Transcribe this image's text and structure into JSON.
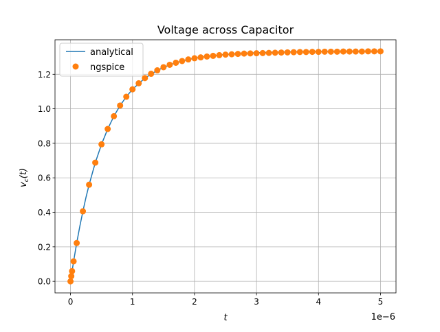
{
  "chart_data": {
    "type": "line",
    "title": "Voltage across Capacitor",
    "xlabel": "t",
    "ylabel": "v_c(t)",
    "ylabel_main": "v",
    "ylabel_sub": "c",
    "ylabel_arg": "(t)",
    "x_offset_text": "1e−6",
    "x_scale": 1e-06,
    "xlim": [
      -0.25,
      5.25
    ],
    "ylim": [
      -0.067,
      1.4
    ],
    "x_ticks": [
      0,
      1,
      2,
      3,
      4,
      5
    ],
    "x_tick_labels": [
      "0",
      "1",
      "2",
      "3",
      "4",
      "5"
    ],
    "y_ticks": [
      0.0,
      0.2,
      0.4,
      0.6,
      0.8,
      1.0,
      1.2
    ],
    "y_tick_labels": [
      "0.0",
      "0.2",
      "0.4",
      "0.6",
      "0.8",
      "1.0",
      "1.2"
    ],
    "grid": true,
    "legend_position": "upper left",
    "series": [
      {
        "name": "analytical",
        "kind": "line",
        "color": "#1f77b4",
        "x": [
          0,
          0.05,
          0.1,
          0.15,
          0.2,
          0.25,
          0.3,
          0.4,
          0.5,
          0.6,
          0.7,
          0.8,
          0.9,
          1.0,
          1.2,
          1.4,
          1.6,
          1.8,
          2.0,
          2.25,
          2.5,
          2.75,
          3.0,
          3.5,
          4.0,
          4.5,
          5.0
        ],
        "y": [
          0,
          0.116,
          0.222,
          0.318,
          0.406,
          0.487,
          0.56,
          0.688,
          0.794,
          0.883,
          0.957,
          1.019,
          1.07,
          1.113,
          1.178,
          1.223,
          1.255,
          1.277,
          1.293,
          1.306,
          1.315,
          1.321,
          1.325,
          1.33,
          1.332,
          1.333,
          1.333
        ]
      },
      {
        "name": "ngspice",
        "kind": "markers",
        "color": "#ff7f0e",
        "x": [
          0,
          0.0125,
          0.025,
          0.05,
          0.1,
          0.2,
          0.3,
          0.4,
          0.5,
          0.6,
          0.7,
          0.8,
          0.9,
          1.0,
          1.1,
          1.2,
          1.3,
          1.4,
          1.5,
          1.6,
          1.7,
          1.8,
          1.9,
          2.0,
          2.1,
          2.2,
          2.3,
          2.4,
          2.5,
          2.6,
          2.7,
          2.8,
          2.9,
          3.0,
          3.1,
          3.2,
          3.3,
          3.4,
          3.5,
          3.6,
          3.7,
          3.8,
          3.9,
          4.0,
          4.1,
          4.2,
          4.3,
          4.4,
          4.5,
          4.6,
          4.7,
          4.8,
          4.9,
          5.0
        ],
        "y": [
          0,
          0.03,
          0.059,
          0.116,
          0.222,
          0.406,
          0.56,
          0.688,
          0.794,
          0.883,
          0.957,
          1.019,
          1.07,
          1.113,
          1.148,
          1.178,
          1.203,
          1.223,
          1.241,
          1.255,
          1.267,
          1.277,
          1.286,
          1.293,
          1.298,
          1.303,
          1.307,
          1.311,
          1.314,
          1.316,
          1.318,
          1.32,
          1.321,
          1.322,
          1.323,
          1.324,
          1.325,
          1.326,
          1.327,
          1.328,
          1.329,
          1.329,
          1.33,
          1.33,
          1.331,
          1.331,
          1.331,
          1.332,
          1.332,
          1.332,
          1.332,
          1.333,
          1.333,
          1.333
        ]
      }
    ]
  }
}
